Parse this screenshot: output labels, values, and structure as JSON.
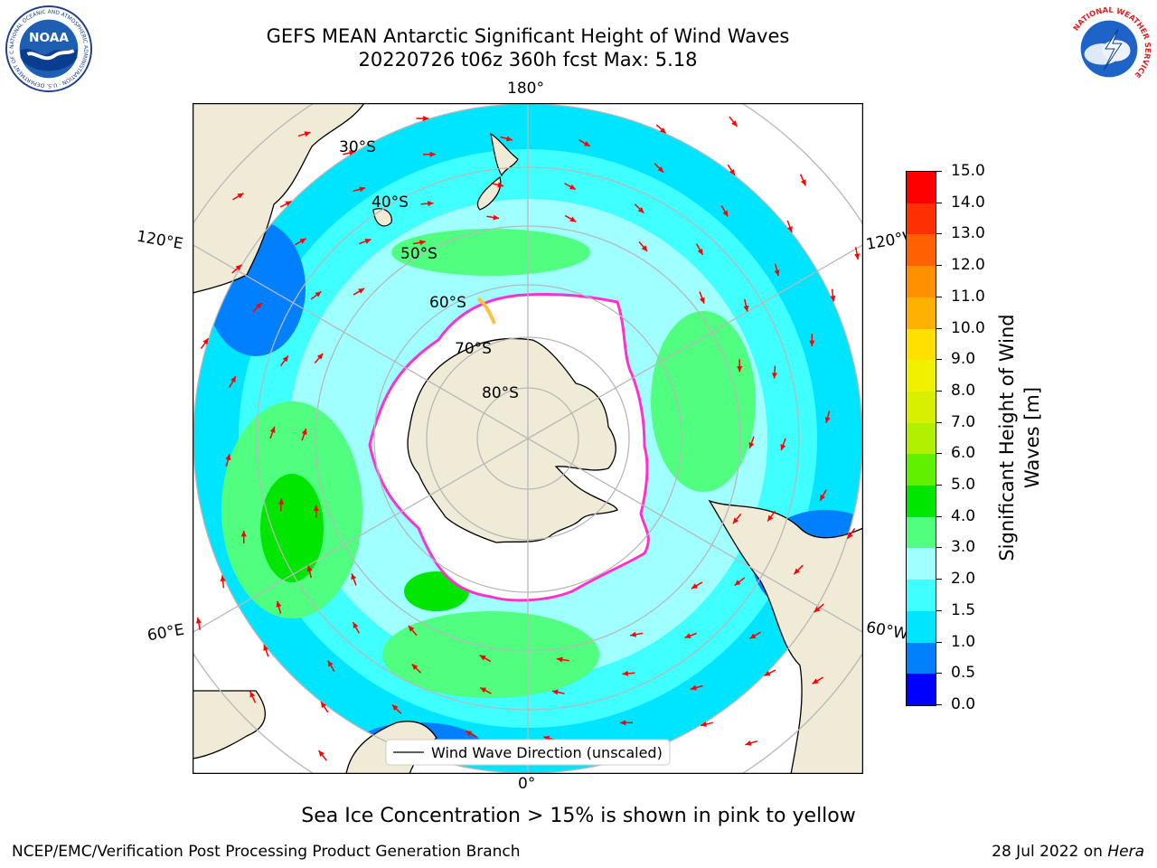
{
  "header": {
    "title_line1": "GEFS MEAN Antarctic Significant Height of Wind Waves",
    "title_line2": "20220726 t06z 360h fcst   Max: 5.18"
  },
  "logos": {
    "noaa_text": "NOAA",
    "noaa_ring": "NATIONAL OCEANIC AND ATMOSPHERIC ADMINISTRATION · U.S. DEPARTMENT OF COMMERCE",
    "nws_ring": "NATIONAL WEATHER SERVICE"
  },
  "map": {
    "projection": "south-polar-stereographic",
    "longitude_labels": {
      "top": "180°",
      "bottom": "0°",
      "upper_left": "120°E",
      "lower_left": "60°E",
      "upper_right": "120°W",
      "lower_right": "60°W"
    },
    "latitude_labels": [
      "30°S",
      "40°S",
      "50°S",
      "60°S",
      "70°S",
      "80°S"
    ],
    "legend_label": "Wind Wave Direction (unscaled)",
    "colors": {
      "land": "#efebd7",
      "sea_ice": "#ffffff",
      "ice_edge": "#ff30d0",
      "arrow": "#ff0000",
      "grid": "#b8b8b8"
    }
  },
  "colorbar": {
    "title": "Significant Height of Wind Waves [m]",
    "tick_labels": [
      "0.0",
      "0.5",
      "1.0",
      "1.5",
      "2.0",
      "3.0",
      "4.0",
      "5.0",
      "6.0",
      "7.0",
      "8.0",
      "9.0",
      "10.0",
      "11.0",
      "12.0",
      "13.0",
      "14.0",
      "15.0"
    ],
    "colors": [
      "#0000ff",
      "#0080ff",
      "#00e5ff",
      "#40ffff",
      "#a0ffff",
      "#50ff80",
      "#00e600",
      "#60f000",
      "#b0f000",
      "#d8f000",
      "#f0f000",
      "#ffe000",
      "#ffb000",
      "#ff9000",
      "#ff6000",
      "#ff3000",
      "#ff0000"
    ]
  },
  "note": "Sea Ice Concentration > 15% is shown in pink to yellow",
  "footer": {
    "left": "NCEP/EMC/Verification Post Processing Product Generation Branch",
    "date": "28 Jul 2022 on",
    "machine": "Hera"
  }
}
